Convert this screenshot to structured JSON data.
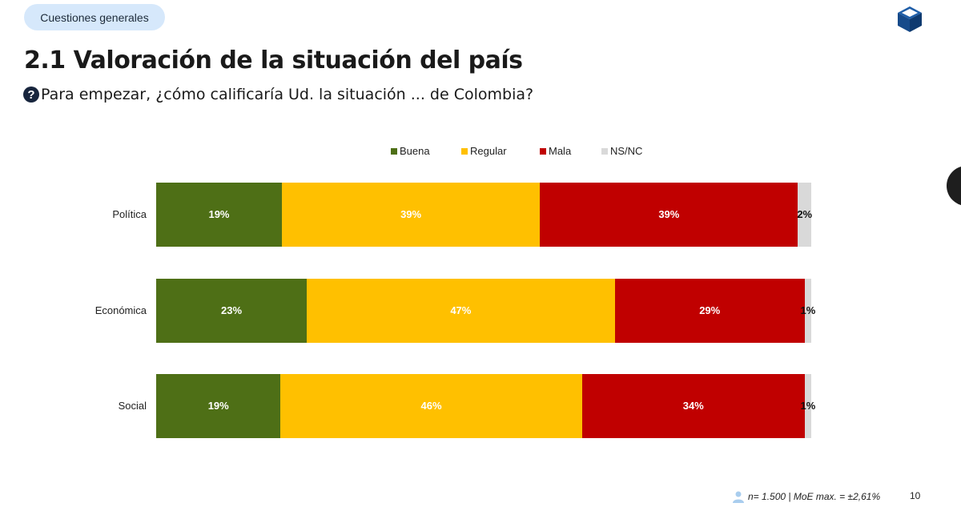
{
  "header": {
    "section_pill": "Cuestiones generales",
    "logo_icon": "cube-logo-icon"
  },
  "title": "2.1 Valoración de la situación del país",
  "question": {
    "icon": "question-circle-icon",
    "text": "Para empezar, ¿cómo calificaría Ud. la situación ... de Colombia?"
  },
  "chart_data": {
    "type": "bar",
    "orientation": "horizontal",
    "stacked": true,
    "categories": [
      "Política",
      "Económica",
      "Social"
    ],
    "series": [
      {
        "name": "Buena",
        "color": "#4e6f16",
        "values": [
          19,
          23,
          19
        ],
        "labels": [
          "19%",
          "23%",
          "19%"
        ]
      },
      {
        "name": "Regular",
        "color": "#ffc000",
        "values": [
          39,
          47,
          46
        ],
        "labels": [
          "39%",
          "47%",
          "46%"
        ]
      },
      {
        "name": "Mala",
        "color": "#c00000",
        "values": [
          39,
          29,
          34
        ],
        "labels": [
          "39%",
          "29%",
          "34%"
        ]
      },
      {
        "name": "NS/NC",
        "color": "#d9d9d9",
        "values": [
          2,
          1,
          1
        ],
        "labels": [
          "2%",
          "1%",
          "1%"
        ]
      }
    ],
    "xlim": [
      0,
      100
    ],
    "legend_position": "top",
    "grid": false
  },
  "footer": {
    "sample_icon": "person-icon",
    "sample_text": "n= 1.500  | MoE max. = ±2,61%",
    "page_number": "10"
  }
}
